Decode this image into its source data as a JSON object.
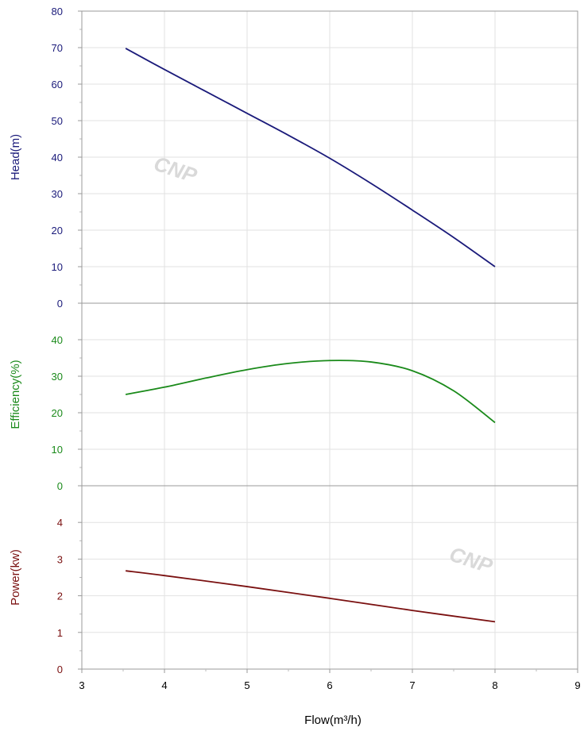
{
  "watermarks": [
    "CNP",
    "CNP"
  ],
  "chart_data": {
    "type": "line",
    "x_axis": {
      "label": "Flow(m³/h)",
      "range": [
        3,
        9
      ],
      "ticks": [
        3,
        4,
        5,
        6,
        7,
        8,
        9
      ]
    },
    "panels": [
      {
        "id": "head",
        "ylabel": "Head(m)",
        "color": "#1a1a7a",
        "ylim": [
          0,
          80
        ],
        "yticks": [
          0,
          10,
          20,
          30,
          40,
          50,
          60,
          70,
          80
        ],
        "x": [
          3.53,
          4.0,
          4.5,
          5.0,
          5.5,
          6.0,
          6.5,
          7.0,
          7.5,
          8.0
        ],
        "values": [
          69.8,
          64.0,
          58.0,
          52.0,
          46.0,
          39.7,
          32.8,
          25.5,
          18.0,
          10.0
        ]
      },
      {
        "id": "efficiency",
        "ylabel": "Efficiency(%)",
        "color": "#1a8a1a",
        "ylim": [
          0,
          50
        ],
        "yticks": [
          0,
          10,
          20,
          30,
          40
        ],
        "x": [
          3.53,
          4.0,
          4.5,
          5.0,
          5.5,
          6.0,
          6.5,
          7.0,
          7.5,
          8.0
        ],
        "values": [
          25.0,
          27.0,
          29.5,
          31.8,
          33.5,
          34.3,
          33.9,
          31.5,
          26.0,
          17.3
        ]
      },
      {
        "id": "power",
        "ylabel": "Power(kw)",
        "color": "#7a1010",
        "ylim": [
          0,
          5
        ],
        "yticks": [
          0,
          1,
          2,
          3,
          4
        ],
        "x": [
          3.53,
          4.0,
          5.0,
          6.0,
          7.0,
          8.0
        ],
        "values": [
          2.68,
          2.55,
          2.25,
          1.93,
          1.6,
          1.29
        ]
      }
    ],
    "grid": true
  }
}
